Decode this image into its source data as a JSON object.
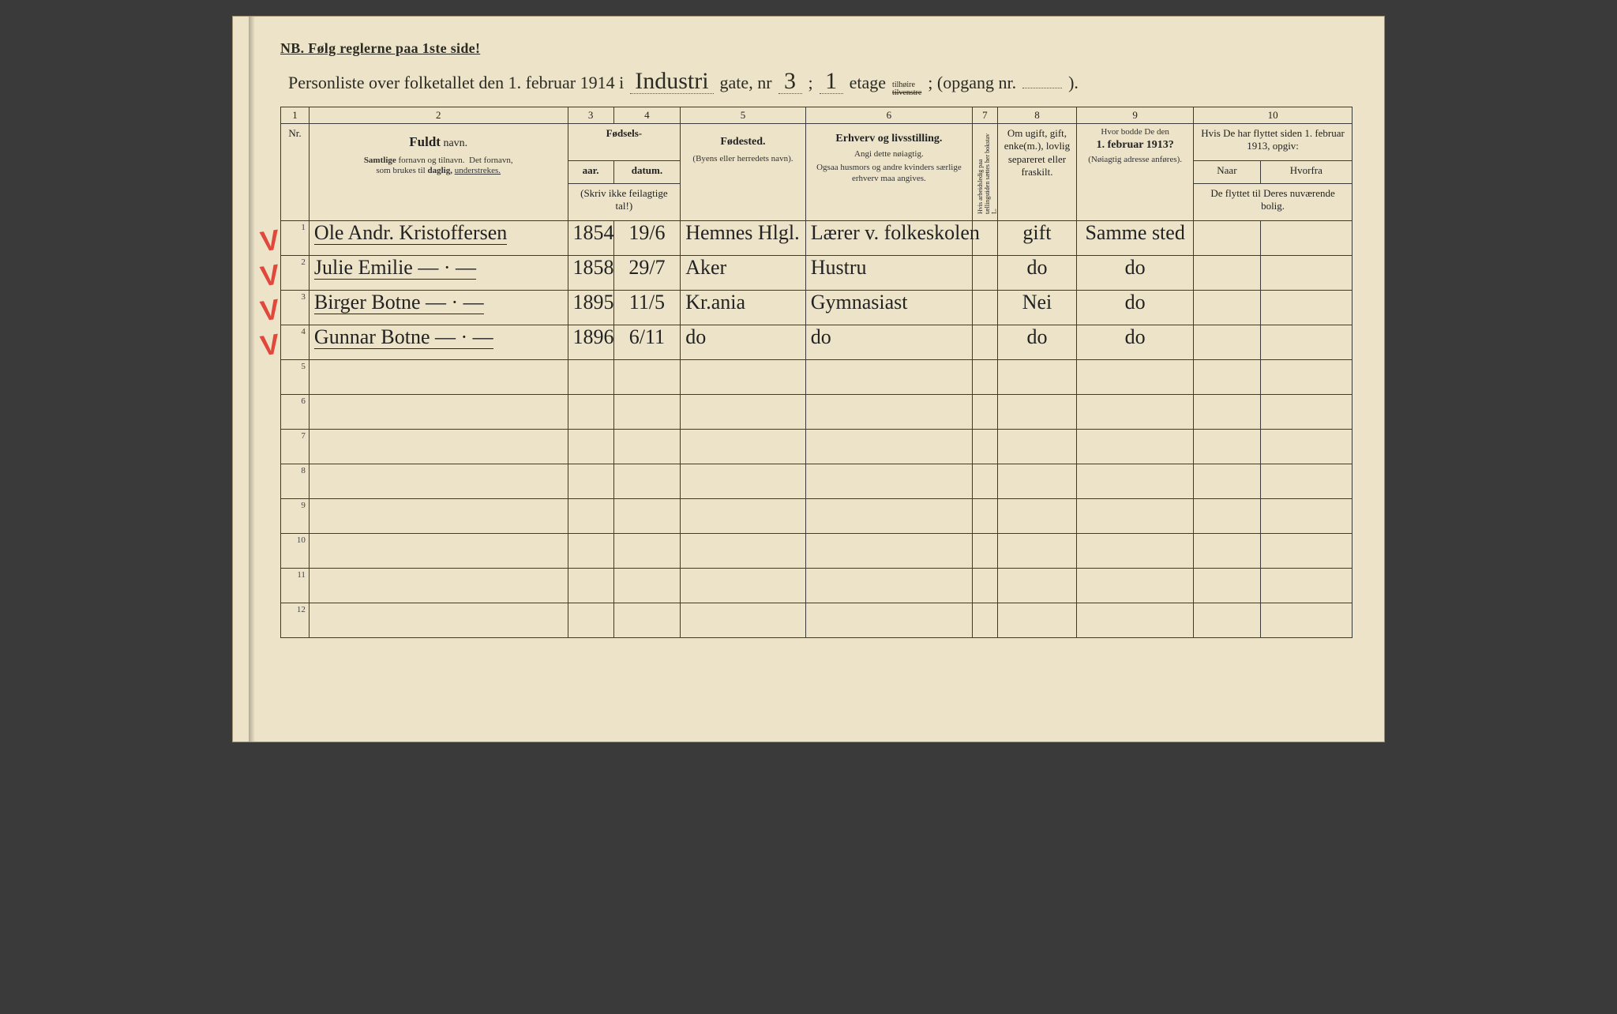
{
  "paper_bg": "#ece3c8",
  "ink": "#2b2b22",
  "red": "#e0483b",
  "header": {
    "nb": "NB.  Følg reglerne paa 1ste side!",
    "title_prefix": "Personliste over folketallet den 1. februar 1914 i",
    "street": "Industri",
    "gate_label": "gate, nr",
    "gate_nr": "3",
    "semicolon": ";",
    "etage_nr": "1",
    "etage_label": "etage",
    "side_opt1": "tilhøire",
    "side_opt2": "tilvenstre",
    "opgang_label": "; (opgang nr.",
    "opgang_nr": "",
    "close": ")."
  },
  "colnums": [
    "1",
    "2",
    "3",
    "4",
    "5",
    "6",
    "7",
    "8",
    "9",
    "10"
  ],
  "columns": {
    "nr": "Nr.",
    "name_bold": "Fuldt",
    "name_rest": " navn.",
    "name_sub1": "Samtlige fornavn og tilnavn.  Det fornavn,",
    "name_sub2": "som brukes til daglig, understrekes.",
    "fodsels": "Fødsels-",
    "aar": "aar.",
    "datum": "datum.",
    "fodsels_sub": "(Skriv ikke feilagtige tal!)",
    "fodested": "Fødested.",
    "fodested_sub": "(Byens eller herredets navn).",
    "erhverv": "Erhverv og livsstilling.",
    "erhverv_sub1": "Angi dette nøiagtig.",
    "erhverv_sub2": "Ogsaa husmors og andre kvinders særlige erhverv maa angives.",
    "col7_vert": "Hvis arbeidsledig paa tællingstiden sættes her bokstav L.",
    "col8": "Om ugift, gift, enke(m.), lovlig separeret eller fraskilt.",
    "col9a": "Hvor bodde De den",
    "col9b": "1. februar 1913?",
    "col9_sub": "(Nøiagtig adresse anføres).",
    "col10_top": "Hvis De har flyttet siden 1. februar 1913, opgiv:",
    "col10a": "Naar",
    "col10b": "Hvorfra",
    "col10_sub": "De flyttet til Deres nuværende bolig."
  },
  "rows": [
    {
      "nr": "1",
      "mark": "V",
      "name": "Ole Andr. Kristoffersen",
      "year": "1854",
      "date": "19/6",
      "place": "Hemnes Hlgl.",
      "occ": "Lærer v. folkeskolen",
      "c7": "",
      "c8": "gift",
      "c9": "Samme sted",
      "c10a": "",
      "c10b": ""
    },
    {
      "nr": "2",
      "mark": "V",
      "name": "Julie Emilie   — · —",
      "year": "1858",
      "date": "29/7",
      "place": "Aker",
      "occ": "Hustru",
      "c7": "",
      "c8": "do",
      "c9": "do",
      "c10a": "",
      "c10b": ""
    },
    {
      "nr": "3",
      "mark": "V",
      "name": "Birger Botne   — · —",
      "year": "1895",
      "date": "11/5",
      "place": "Kr.ania",
      "occ": "Gymnasiast",
      "c7": "",
      "c8": "Nei",
      "c9": "do",
      "c10a": "",
      "c10b": ""
    },
    {
      "nr": "4",
      "mark": "V",
      "name": "Gunnar Botne  — · —",
      "year": "1896",
      "date": "6/11",
      "place": "do",
      "occ": "do",
      "c7": "",
      "c8": "do",
      "c9": "do",
      "c10a": "",
      "c10b": ""
    },
    {
      "nr": "5"
    },
    {
      "nr": "6"
    },
    {
      "nr": "7"
    },
    {
      "nr": "8"
    },
    {
      "nr": "9"
    },
    {
      "nr": "10"
    },
    {
      "nr": "11"
    },
    {
      "nr": "12"
    }
  ]
}
